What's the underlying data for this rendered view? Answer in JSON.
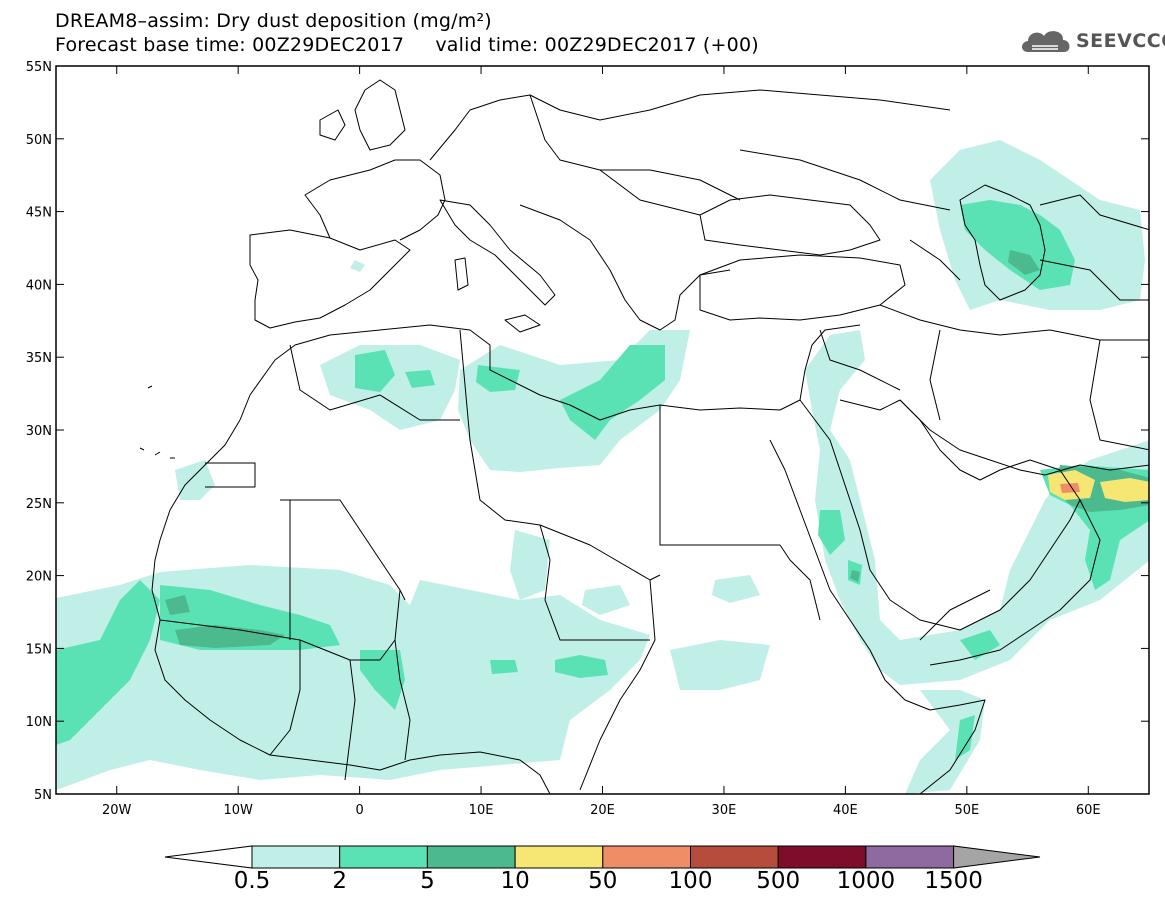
{
  "title": {
    "line1": "DREAM8–assim: Dry dust deposition (mg/m²)",
    "line2": "Forecast base time: 00Z29DEC2017     valid time: 00Z29DEC2017 (+00)"
  },
  "logo": {
    "text": "SEEVCCC",
    "icon": "cloud-logo-icon"
  },
  "map": {
    "lon_range": [
      -25,
      65
    ],
    "lat_range": [
      5,
      55
    ],
    "lat_ticks": [
      "55N",
      "50N",
      "45N",
      "40N",
      "35N",
      "30N",
      "25N",
      "20N",
      "15N",
      "10N",
      "5N"
    ],
    "lon_ticks": [
      "20W",
      "10W",
      "0",
      "10E",
      "20E",
      "30E",
      "40E",
      "50E",
      "60E"
    ]
  },
  "colorbar": {
    "labels": [
      "0.5",
      "2",
      "5",
      "10",
      "50",
      "100",
      "500",
      "1000",
      "1500"
    ],
    "colors": [
      "#bfefe6",
      "#5ae2b5",
      "#4cb98e",
      "#f6e774",
      "#ef8e66",
      "#b64c3c",
      "#7e0c2b",
      "#8e6aa0",
      "#a5a5a5"
    ]
  },
  "dust_colors": {
    "light": "#bfefe6",
    "mid": "#5ae2b5",
    "dark": "#4cb98e",
    "yellow": "#f6e774",
    "orange": "#ef8e66"
  }
}
